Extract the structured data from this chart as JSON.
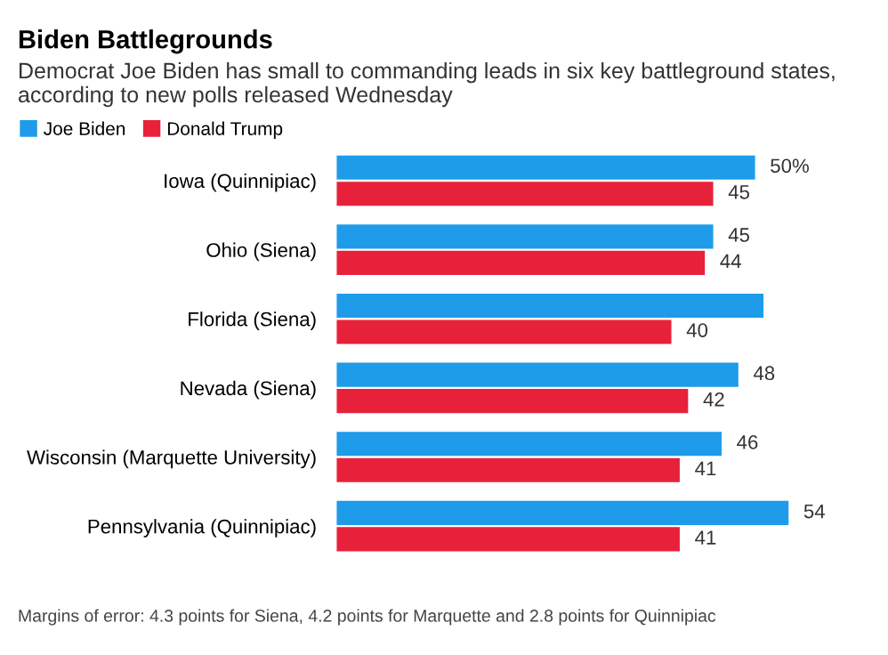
{
  "chart_data": {
    "type": "bar",
    "orientation": "horizontal",
    "title": "Biden Battlegrounds",
    "subtitle": "Democrat Joe Biden has small to commanding leads in six key battleground states, according to new polls released Wednesday",
    "categories": [
      "Iowa (Quinnipiac)",
      "Ohio (Siena)",
      "Florida (Siena)",
      "Nevada (Siena)",
      "Wisconsin (Marquette University)",
      "Pennsylvania (Quinnipiac)"
    ],
    "series": [
      {
        "name": "Joe Biden",
        "color": "#1e9be9",
        "values": [
          50,
          45,
          51,
          48,
          46,
          54
        ],
        "value_labels": [
          "50%",
          "45",
          null,
          "48",
          "46",
          "54"
        ]
      },
      {
        "name": "Donald Trump",
        "color": "#e8213a",
        "values": [
          45,
          44,
          40,
          42,
          41,
          41
        ],
        "value_labels": [
          "45",
          "44",
          "40",
          "42",
          "41",
          "41"
        ]
      }
    ],
    "legend": "top left",
    "grid": false,
    "annotations": [
      "Margins of error: 4.3 points for Siena, 4.2 points for Marquette and 2.8 points for Quinnipiac"
    ]
  }
}
